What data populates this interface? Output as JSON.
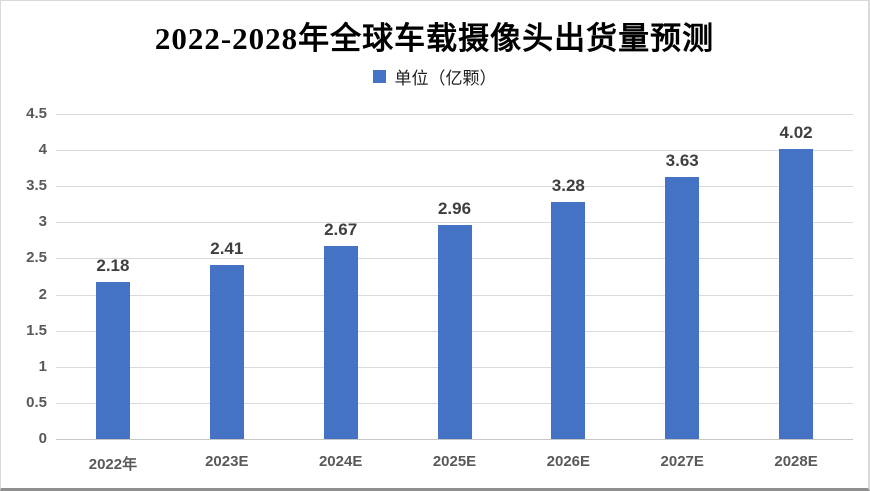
{
  "window": {
    "background": "#ffffff",
    "border_color": "#d9d9d9",
    "bottom_edge_color": "#8f8f8f"
  },
  "chart_data": {
    "type": "bar",
    "title": "2022-2028年全球车载摄像头出货量预测",
    "legend": {
      "label": "单位（亿颗）",
      "swatch_color": "#4472C4",
      "position": "top"
    },
    "categories": [
      "2022年",
      "2023E",
      "2024E",
      "2025E",
      "2026E",
      "2027E",
      "2028E"
    ],
    "values": [
      2.18,
      2.41,
      2.67,
      2.96,
      3.28,
      3.63,
      4.02
    ],
    "data_labels": [
      "2.18",
      "2.41",
      "2.67",
      "2.96",
      "3.28",
      "3.63",
      "4.02"
    ],
    "xlabel": "",
    "ylabel": "",
    "ylim": [
      0,
      4.5
    ],
    "ytick_step": 0.5,
    "y_tick_labels": [
      "0",
      "0.5",
      "1",
      "1.5",
      "2",
      "2.5",
      "3",
      "3.5",
      "4",
      "4.5"
    ],
    "grid": true,
    "legend_visible": true,
    "colors": {
      "bar": "#4472C4",
      "gridline": "#dadada",
      "axis_line": "#c6c6c6",
      "tick_label": "#595959",
      "data_label": "#3f3f3f",
      "title": "#000000"
    }
  }
}
